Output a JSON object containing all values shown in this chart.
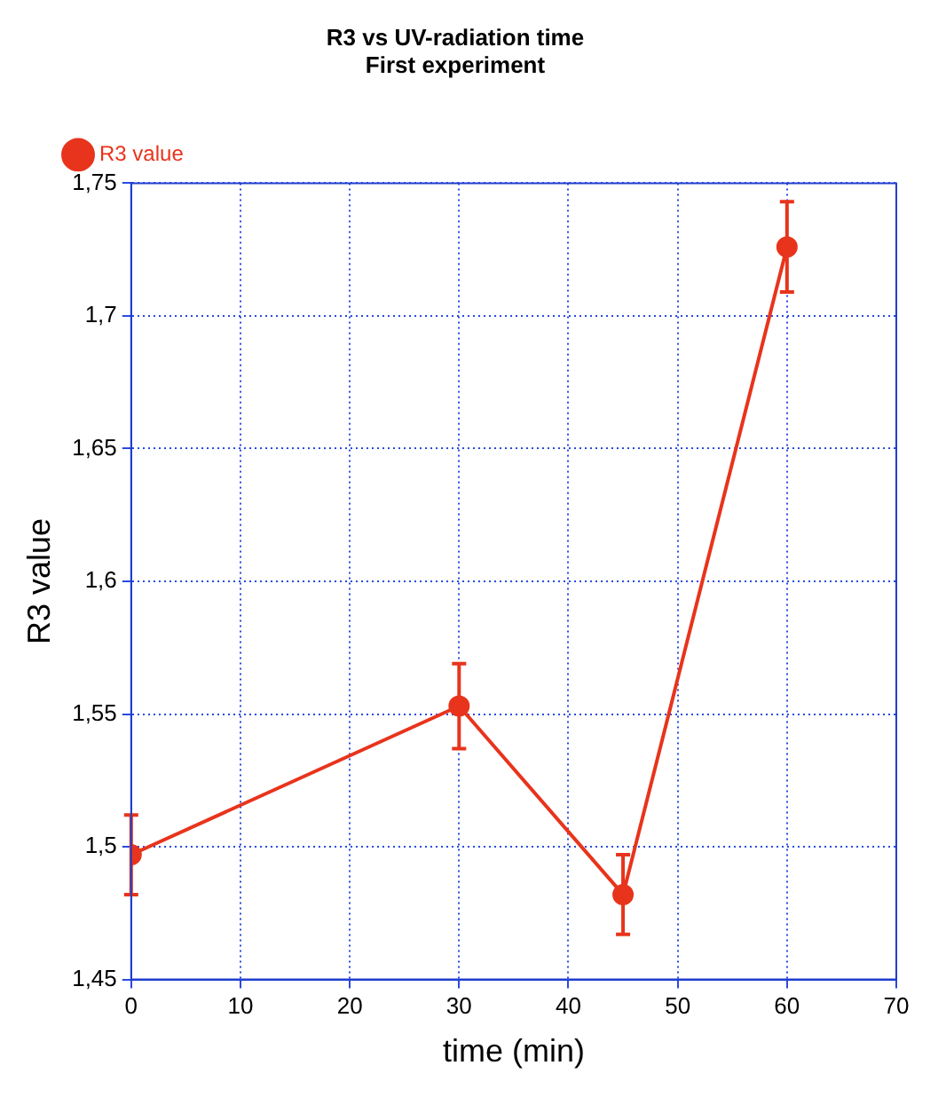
{
  "chart_data": {
    "type": "line",
    "title": "R3 vs UV-radiation time",
    "subtitle": "First experiment",
    "xlabel": "time (min)",
    "ylabel": "R3 value",
    "x": [
      0,
      30,
      45,
      60
    ],
    "series": [
      {
        "name": "R3 value",
        "color": "#e8341c",
        "values": [
          1.497,
          1.553,
          1.482,
          1.726
        ],
        "errors": [
          0.015,
          0.016,
          0.015,
          0.017
        ]
      }
    ],
    "xlim": [
      0,
      70
    ],
    "xticks": [
      0,
      10,
      20,
      30,
      40,
      50,
      60,
      70
    ],
    "ylim": [
      1.45,
      1.75
    ],
    "yticks": [
      {
        "value": 1.45,
        "label": "1,45"
      },
      {
        "value": 1.5,
        "label": "1,5"
      },
      {
        "value": 1.55,
        "label": "1,55"
      },
      {
        "value": 1.6,
        "label": "1,6"
      },
      {
        "value": 1.65,
        "label": "1,65"
      },
      {
        "value": 1.7,
        "label": "1,7"
      },
      {
        "value": 1.75,
        "label": "1,75"
      }
    ],
    "grid": true,
    "legend": "top left",
    "marker": "circle",
    "line_style": "solid"
  }
}
